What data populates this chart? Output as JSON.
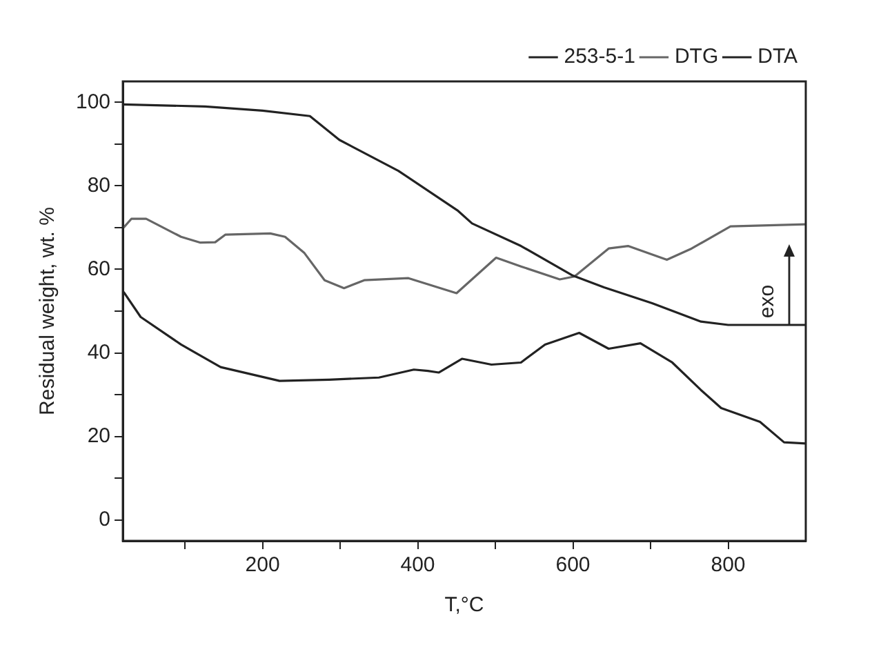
{
  "chart_data": {
    "type": "line",
    "xlabel": "T,°C",
    "ylabel": "Residual weight, wt. %",
    "xlim": [
      20,
      900
    ],
    "ylim": [
      -5,
      105
    ],
    "xticks": [
      {
        "value": 100,
        "label": null
      },
      200,
      {
        "value": 300,
        "label": null
      },
      400,
      {
        "value": 500,
        "label": null
      },
      600,
      {
        "value": 700,
        "label": null
      },
      800
    ],
    "yticks": [
      0,
      {
        "value": 10,
        "label": null
      },
      20,
      {
        "value": 30,
        "label": null
      },
      40,
      {
        "value": 50,
        "label": null
      },
      60,
      {
        "value": 70,
        "label": null
      },
      80,
      {
        "value": 90,
        "label": null
      },
      100
    ],
    "grid": false,
    "legend": "top right",
    "marker": "none",
    "line_style": "solid",
    "annotations": [
      "exo"
    ],
    "series": [
      {
        "name": "253-5-1",
        "color": "#222222",
        "x": [
          20,
          126,
          200,
          261,
          299,
          375,
          452,
          470,
          533,
          600,
          640,
          702,
          765,
          800,
          900
        ],
        "values": [
          99.5,
          99,
          98,
          96.7,
          91,
          83.6,
          74,
          71,
          65.6,
          58.5,
          55.7,
          51.9,
          47.5,
          46.7,
          46.7
        ]
      },
      {
        "name": "DTG",
        "color": "#666666",
        "x": [
          21,
          31,
          50,
          95,
          120,
          139,
          152,
          210,
          229,
          254,
          280,
          305,
          331,
          388,
          450,
          501,
          533,
          583,
          602,
          646,
          671,
          721,
          753,
          803,
          900
        ],
        "values": [
          70,
          72.1,
          72.1,
          67.8,
          66.4,
          66.5,
          68.3,
          68.6,
          67.8,
          63.9,
          57.4,
          55.5,
          57.4,
          57.9,
          54.3,
          62.8,
          60.7,
          57.6,
          58.3,
          65,
          65.6,
          62.3,
          65,
          70.3,
          70.8
        ]
      },
      {
        "name": "DTA",
        "color": "#222222",
        "x": [
          21,
          43,
          95,
          146,
          222,
          286,
          350,
          395,
          413,
          427,
          457,
          495,
          533,
          564,
          608,
          646,
          687,
          728,
          765,
          791,
          841,
          872,
          900
        ],
        "values": [
          54.6,
          48.6,
          42,
          36.6,
          33.3,
          33.6,
          34.1,
          36,
          35.7,
          35.3,
          38.6,
          37.2,
          37.7,
          42,
          44.8,
          41,
          42.3,
          37.7,
          31.1,
          26.8,
          23.5,
          18.6,
          18.3
        ]
      }
    ]
  }
}
